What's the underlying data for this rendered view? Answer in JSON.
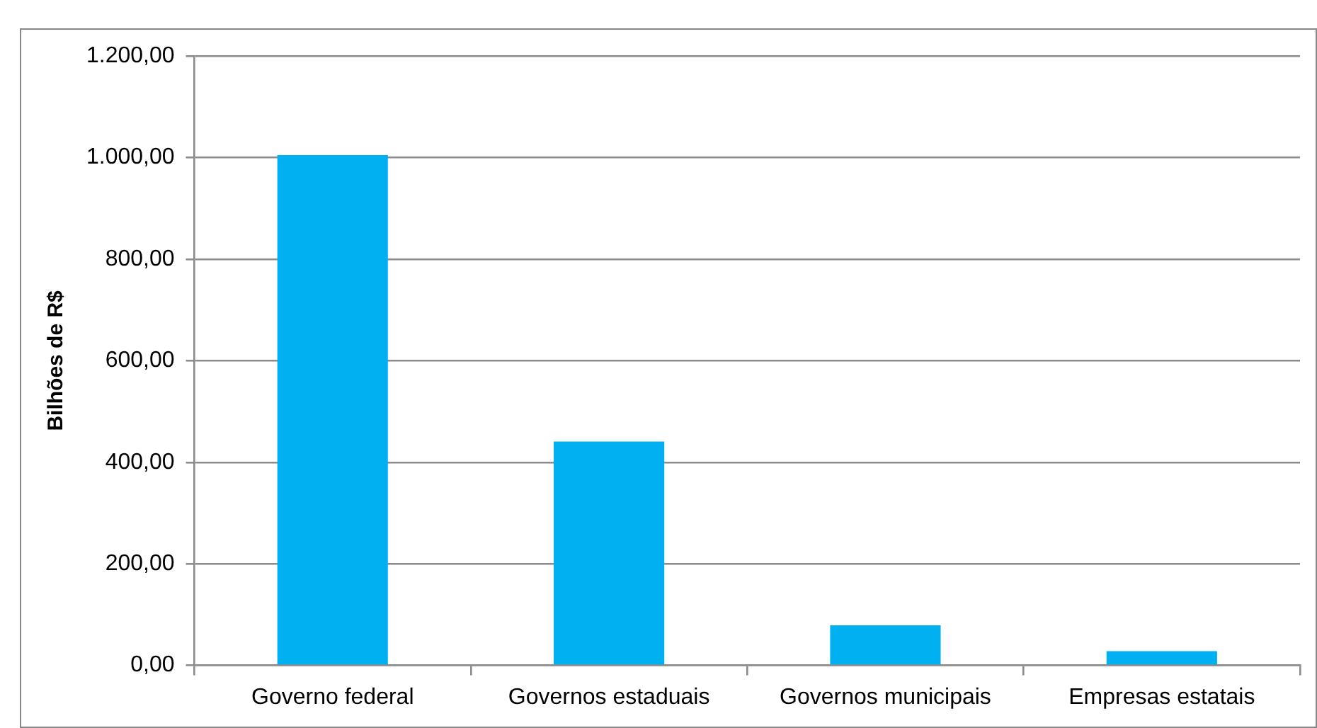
{
  "chart_data": {
    "type": "bar",
    "ylabel": "Bilhões de R$",
    "categories": [
      "Governo federal",
      "Governos estaduais",
      "Governos municipais",
      "Empresas estatais"
    ],
    "values": [
      1005,
      441,
      79,
      28
    ],
    "color": "#00b0f0",
    "ylim": [
      0,
      1200
    ],
    "yticks": [
      {
        "value": 0,
        "label": "0,00"
      },
      {
        "value": 200,
        "label": "200,00"
      },
      {
        "value": 400,
        "label": "400,00"
      },
      {
        "value": 600,
        "label": "600,00"
      },
      {
        "value": 800,
        "label": "800,00"
      },
      {
        "value": 1000,
        "label": "1.000,00"
      },
      {
        "value": 1200,
        "label": "1.200,00"
      }
    ],
    "grid": "y",
    "legend": false
  }
}
